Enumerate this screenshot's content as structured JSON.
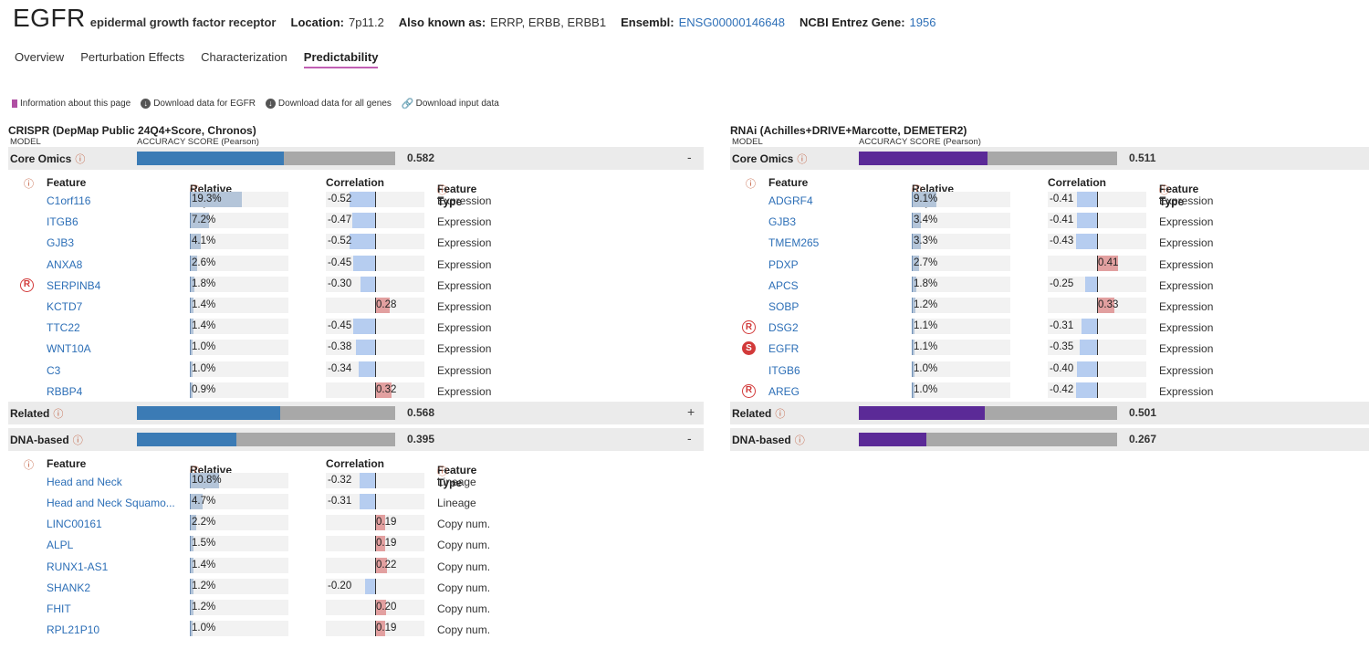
{
  "gene": {
    "symbol": "EGFR",
    "full_name": "epidermal growth factor receptor",
    "location_label": "Location:",
    "location": "7p11.2",
    "aka_label": "Also known as:",
    "aka": "ERRP, ERBB, ERBB1",
    "ensembl_label": "Ensembl:",
    "ensembl": "ENSG00000146648",
    "entrez_label": "NCBI Entrez Gene:",
    "entrez": "1956"
  },
  "tabs": [
    "Overview",
    "Perturbation Effects",
    "Characterization",
    "Predictability"
  ],
  "active_tab": 3,
  "actions": {
    "info": "Information about this page",
    "download_gene": "Download data for EGFR",
    "download_all": "Download data for all genes",
    "download_input": "Download input data"
  },
  "colors": {
    "crispr_accent": "#3b7bb5",
    "rnai_accent": "#5b2a97",
    "link": "#2d6fb7",
    "negative_corr": "#b6cdf0",
    "positive_corr": "#e2a0a0",
    "tab_underline": "#c15fb3"
  },
  "headers": {
    "model": "MODEL",
    "accuracy": "ACCURACY SCORE (Pearson)",
    "feature": "Feature",
    "importance": "Relative Importance",
    "correlation": "Correlation",
    "feature_type": "Feature Type"
  },
  "crispr": {
    "title": "CRISPR (DepMap Public 24Q4+Score, Chronos)",
    "core_omics": {
      "name": "Core Omics",
      "score": 0.582,
      "score_label": "0.582",
      "toggle": "-"
    },
    "related": {
      "name": "Related",
      "score": 0.568,
      "score_label": "0.568",
      "toggle": "+"
    },
    "dna_based": {
      "name": "DNA-based",
      "score": 0.395,
      "score_label": "0.395",
      "toggle": "-"
    },
    "core_features": [
      {
        "badge": "",
        "name": "C1orf116",
        "importance": 19.3,
        "importance_label": "19.3%",
        "corr": -0.52,
        "corr_label": "-0.52",
        "type": "Expression"
      },
      {
        "badge": "",
        "name": "ITGB6",
        "importance": 7.2,
        "importance_label": "7.2%",
        "corr": -0.47,
        "corr_label": "-0.47",
        "type": "Expression"
      },
      {
        "badge": "",
        "name": "GJB3",
        "importance": 4.1,
        "importance_label": "4.1%",
        "corr": -0.52,
        "corr_label": "-0.52",
        "type": "Expression"
      },
      {
        "badge": "",
        "name": "ANXA8",
        "importance": 2.6,
        "importance_label": "2.6%",
        "corr": -0.45,
        "corr_label": "-0.45",
        "type": "Expression"
      },
      {
        "badge": "R",
        "name": "SERPINB4",
        "importance": 1.8,
        "importance_label": "1.8%",
        "corr": -0.3,
        "corr_label": "-0.30",
        "type": "Expression"
      },
      {
        "badge": "",
        "name": "KCTD7",
        "importance": 1.4,
        "importance_label": "1.4%",
        "corr": 0.28,
        "corr_label": "0.28",
        "type": "Expression"
      },
      {
        "badge": "",
        "name": "TTC22",
        "importance": 1.4,
        "importance_label": "1.4%",
        "corr": -0.45,
        "corr_label": "-0.45",
        "type": "Expression"
      },
      {
        "badge": "",
        "name": "WNT10A",
        "importance": 1.0,
        "importance_label": "1.0%",
        "corr": -0.38,
        "corr_label": "-0.38",
        "type": "Expression"
      },
      {
        "badge": "",
        "name": "C3",
        "importance": 1.0,
        "importance_label": "1.0%",
        "corr": -0.34,
        "corr_label": "-0.34",
        "type": "Expression"
      },
      {
        "badge": "",
        "name": "RBBP4",
        "importance": 0.9,
        "importance_label": "0.9%",
        "corr": 0.32,
        "corr_label": "0.32",
        "type": "Expression"
      }
    ],
    "dna_features": [
      {
        "badge": "",
        "name": "Head and Neck",
        "importance": 10.8,
        "importance_label": "10.8%",
        "corr": -0.32,
        "corr_label": "-0.32",
        "type": "Lineage"
      },
      {
        "badge": "",
        "name": "Head and Neck Squamo...",
        "importance": 4.7,
        "importance_label": "4.7%",
        "corr": -0.31,
        "corr_label": "-0.31",
        "type": "Lineage"
      },
      {
        "badge": "",
        "name": "LINC00161",
        "importance": 2.2,
        "importance_label": "2.2%",
        "corr": 0.19,
        "corr_label": "0.19",
        "type": "Copy num."
      },
      {
        "badge": "",
        "name": "ALPL",
        "importance": 1.5,
        "importance_label": "1.5%",
        "corr": 0.19,
        "corr_label": "0.19",
        "type": "Copy num."
      },
      {
        "badge": "",
        "name": "RUNX1-AS1",
        "importance": 1.4,
        "importance_label": "1.4%",
        "corr": 0.22,
        "corr_label": "0.22",
        "type": "Copy num."
      },
      {
        "badge": "",
        "name": "SHANK2",
        "importance": 1.2,
        "importance_label": "1.2%",
        "corr": -0.2,
        "corr_label": "-0.20",
        "type": "Copy num."
      },
      {
        "badge": "",
        "name": "FHIT",
        "importance": 1.2,
        "importance_label": "1.2%",
        "corr": 0.2,
        "corr_label": "0.20",
        "type": "Copy num."
      },
      {
        "badge": "",
        "name": "RPL21P10",
        "importance": 1.0,
        "importance_label": "1.0%",
        "corr": 0.19,
        "corr_label": "0.19",
        "type": "Copy num."
      }
    ]
  },
  "rnai": {
    "title": "RNAi (Achilles+DRIVE+Marcotte, DEMETER2)",
    "core_omics": {
      "name": "Core Omics",
      "score": 0.511,
      "score_label": "0.511"
    },
    "related": {
      "name": "Related",
      "score": 0.501,
      "score_label": "0.501"
    },
    "dna_based": {
      "name": "DNA-based",
      "score": 0.267,
      "score_label": "0.267"
    },
    "core_features": [
      {
        "badge": "",
        "name": "ADGRF4",
        "importance": 9.1,
        "importance_label": "9.1%",
        "corr": -0.41,
        "corr_label": "-0.41",
        "type": "Expression"
      },
      {
        "badge": "",
        "name": "GJB3",
        "importance": 3.4,
        "importance_label": "3.4%",
        "corr": -0.41,
        "corr_label": "-0.41",
        "type": "Expression"
      },
      {
        "badge": "",
        "name": "TMEM265",
        "importance": 3.3,
        "importance_label": "3.3%",
        "corr": -0.43,
        "corr_label": "-0.43",
        "type": "Expression"
      },
      {
        "badge": "",
        "name": "PDXP",
        "importance": 2.7,
        "importance_label": "2.7%",
        "corr": 0.41,
        "corr_label": "0.41",
        "type": "Expression"
      },
      {
        "badge": "",
        "name": "APCS",
        "importance": 1.8,
        "importance_label": "1.8%",
        "corr": -0.25,
        "corr_label": "-0.25",
        "type": "Expression"
      },
      {
        "badge": "",
        "name": "SOBP",
        "importance": 1.2,
        "importance_label": "1.2%",
        "corr": 0.33,
        "corr_label": "0.33",
        "type": "Expression"
      },
      {
        "badge": "R",
        "name": "DSG2",
        "importance": 1.1,
        "importance_label": "1.1%",
        "corr": -0.31,
        "corr_label": "-0.31",
        "type": "Expression"
      },
      {
        "badge": "S",
        "name": "EGFR",
        "importance": 1.1,
        "importance_label": "1.1%",
        "corr": -0.35,
        "corr_label": "-0.35",
        "type": "Expression"
      },
      {
        "badge": "",
        "name": "ITGB6",
        "importance": 1.0,
        "importance_label": "1.0%",
        "corr": -0.4,
        "corr_label": "-0.40",
        "type": "Expression"
      },
      {
        "badge": "R",
        "name": "AREG",
        "importance": 1.0,
        "importance_label": "1.0%",
        "corr": -0.42,
        "corr_label": "-0.42",
        "type": "Expression"
      }
    ]
  }
}
